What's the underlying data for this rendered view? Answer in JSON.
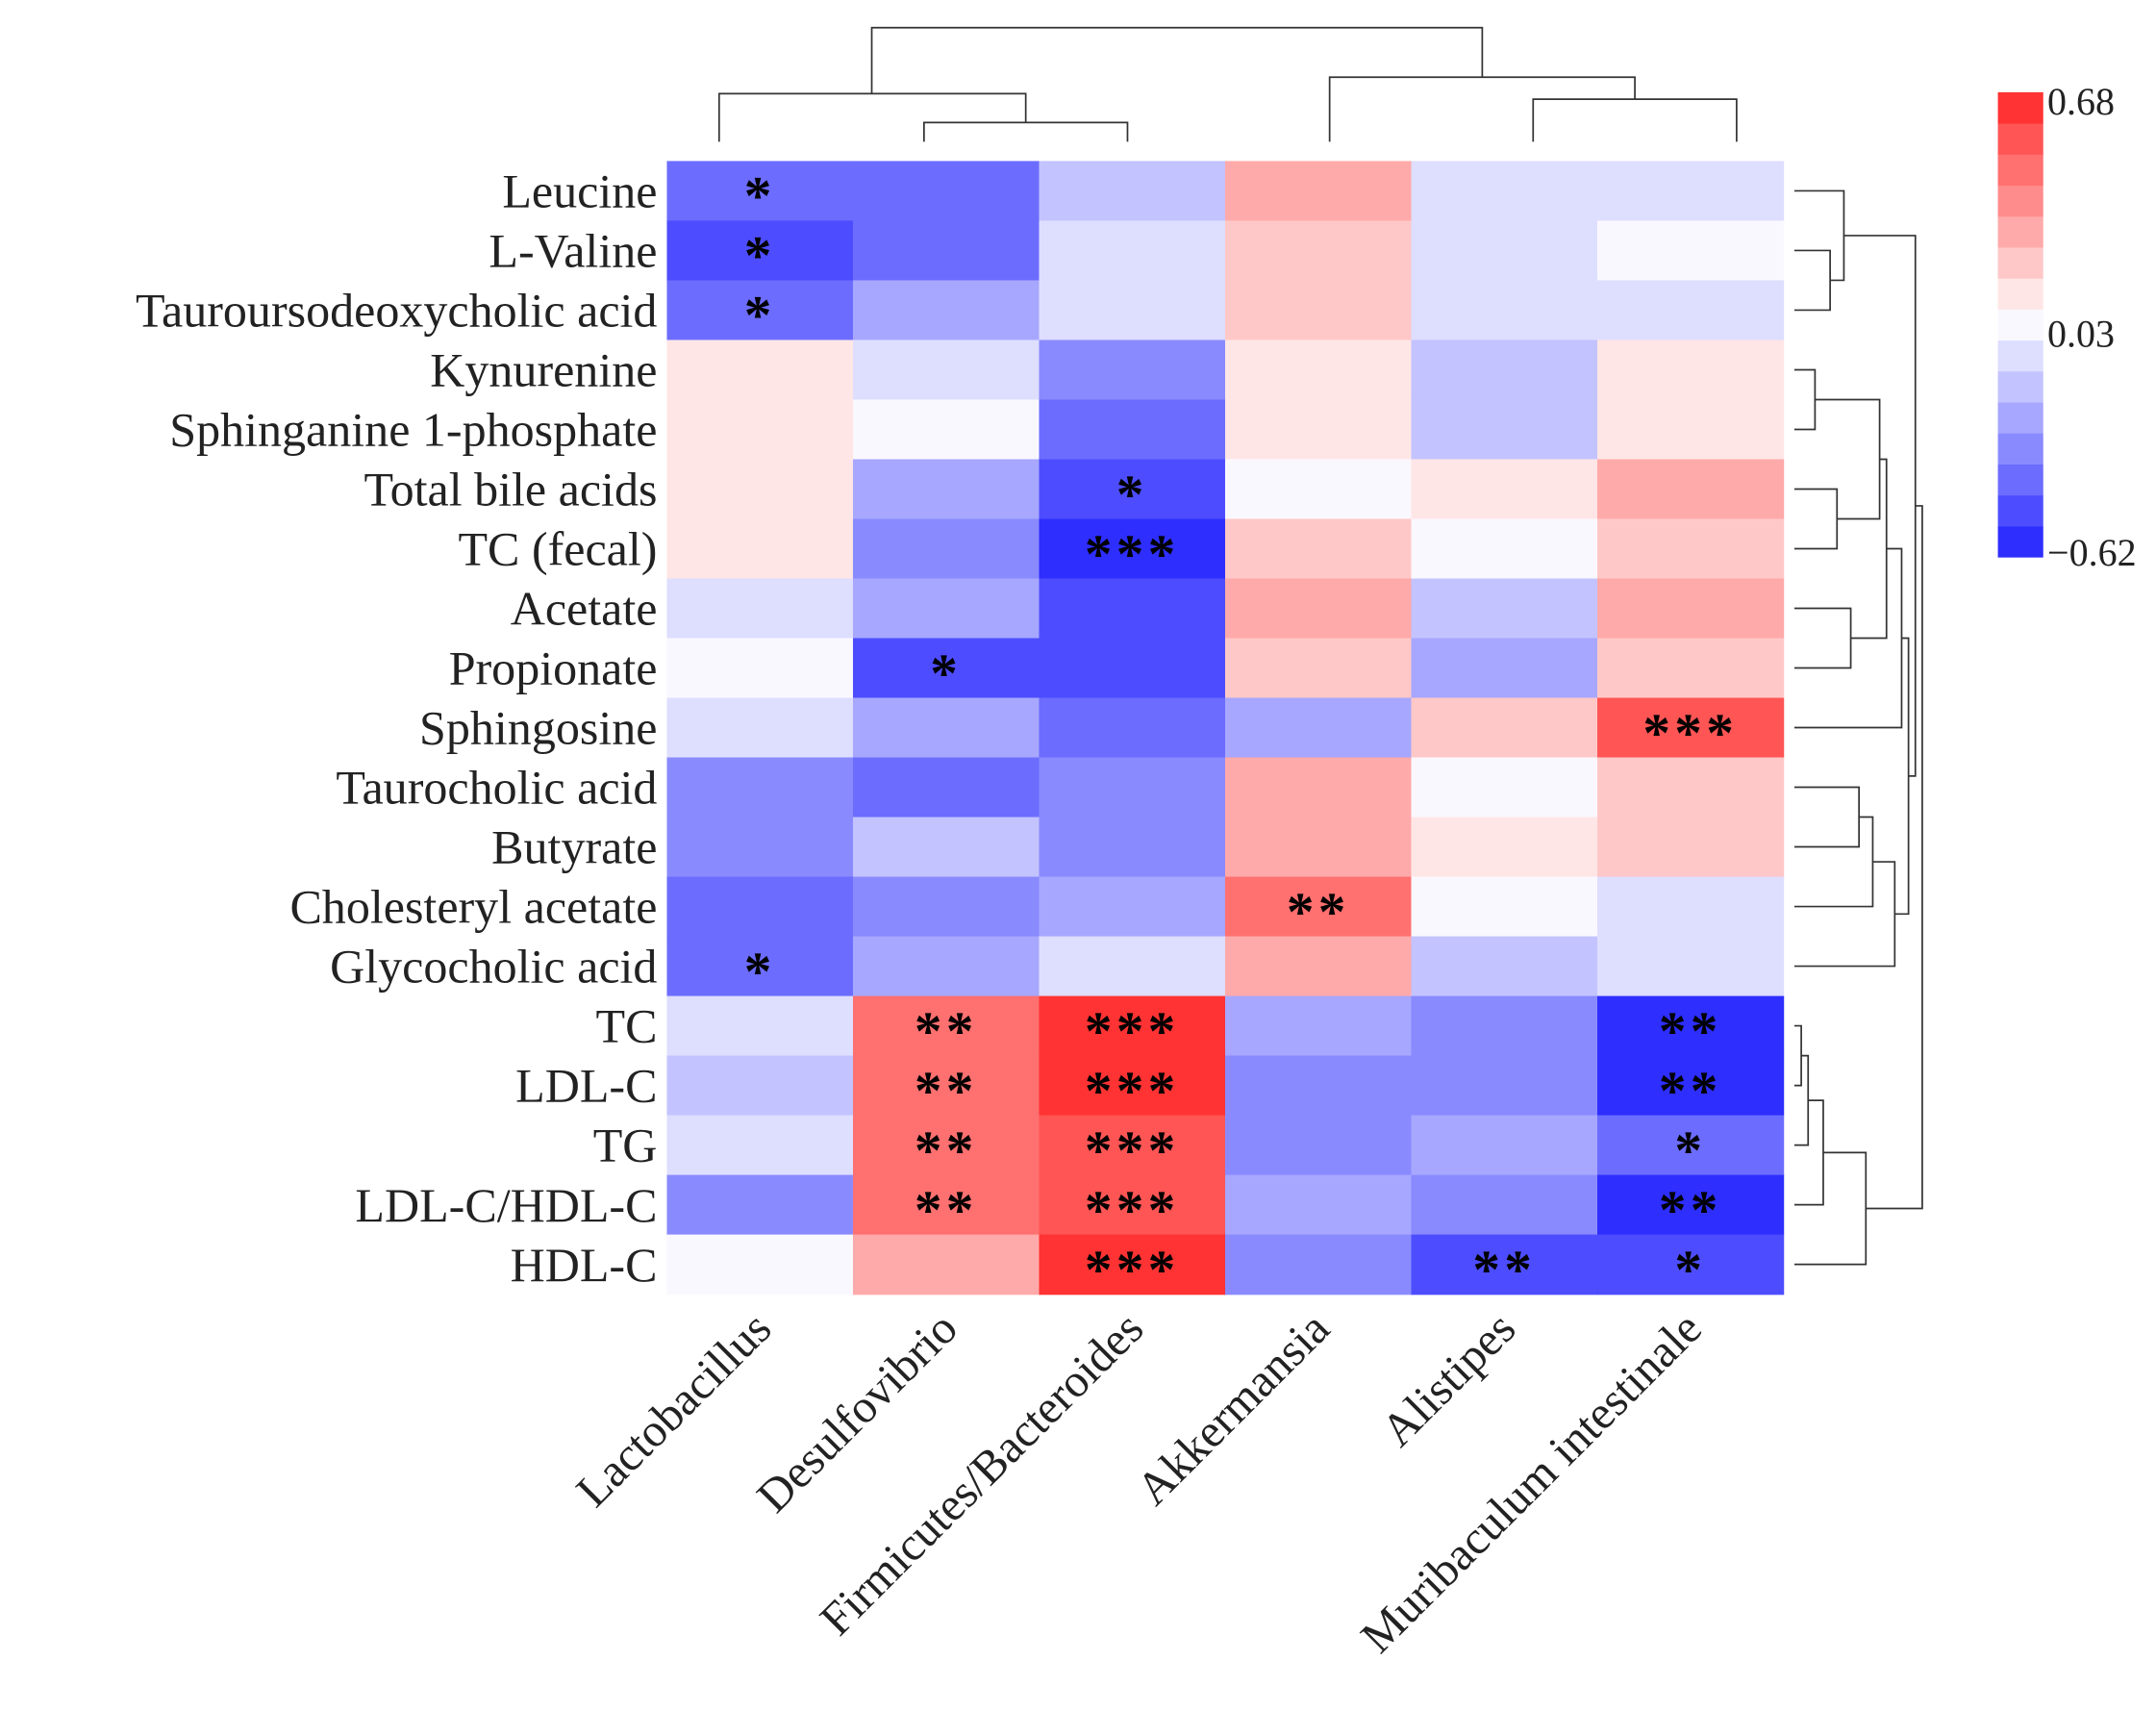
{
  "chart_data": {
    "type": "heatmap",
    "title": "",
    "columns": [
      "Lactobacillus",
      "Desulfovibrio",
      "Firmicutes/Bacteroides",
      "Akkermansia",
      "Alistipes",
      "Muribaculum intestinale"
    ],
    "rows": [
      "Leucine",
      "L-Valine",
      "Tauroursodeoxycholic acid",
      "Kynurenine",
      "Sphinganine 1-phosphate",
      "Total bile acids",
      "TC (fecal)",
      "Acetate",
      "Propionate",
      "Sphingosine",
      "Taurocholic acid",
      "Butyrate",
      "Cholesteryl acetate",
      "Glycocholic acid",
      "TC",
      "LDL-C",
      "TG",
      "LDL-C/HDL-C",
      "HDL-C"
    ],
    "values": [
      [
        -0.4,
        -0.4,
        -0.14,
        0.29,
        -0.06,
        -0.06
      ],
      [
        -0.49,
        -0.4,
        -0.06,
        0.2,
        -0.06,
        0.03
      ],
      [
        -0.4,
        -0.23,
        -0.06,
        0.2,
        -0.06,
        -0.06
      ],
      [
        0.12,
        -0.06,
        -0.32,
        0.12,
        -0.14,
        0.12
      ],
      [
        0.12,
        0.03,
        -0.4,
        0.12,
        -0.14,
        0.12
      ],
      [
        0.12,
        -0.23,
        -0.49,
        0.03,
        0.12,
        0.29
      ],
      [
        0.12,
        -0.32,
        -0.58,
        0.2,
        0.03,
        0.2
      ],
      [
        -0.06,
        -0.23,
        -0.49,
        0.29,
        -0.14,
        0.29
      ],
      [
        0.03,
        -0.49,
        -0.49,
        0.2,
        -0.23,
        0.2
      ],
      [
        -0.06,
        -0.23,
        -0.4,
        -0.23,
        0.2,
        0.55
      ],
      [
        -0.32,
        -0.4,
        -0.32,
        0.29,
        0.03,
        0.2
      ],
      [
        -0.32,
        -0.14,
        -0.32,
        0.29,
        0.12,
        0.2
      ],
      [
        -0.4,
        -0.32,
        -0.23,
        0.46,
        0.03,
        -0.06
      ],
      [
        -0.4,
        -0.23,
        -0.06,
        0.29,
        -0.14,
        -0.06
      ],
      [
        -0.06,
        0.46,
        0.64,
        -0.23,
        -0.32,
        -0.58
      ],
      [
        -0.14,
        0.46,
        0.64,
        -0.32,
        -0.32,
        -0.58
      ],
      [
        -0.06,
        0.46,
        0.55,
        -0.32,
        -0.23,
        -0.4
      ],
      [
        -0.32,
        0.46,
        0.55,
        -0.23,
        -0.32,
        -0.58
      ],
      [
        0.03,
        0.29,
        0.64,
        -0.32,
        -0.49,
        -0.49
      ]
    ],
    "significance": [
      [
        "*",
        "",
        "",
        "",
        "",
        ""
      ],
      [
        "*",
        "",
        "",
        "",
        "",
        ""
      ],
      [
        "*",
        "",
        "",
        "",
        "",
        ""
      ],
      [
        "",
        "",
        "",
        "",
        "",
        ""
      ],
      [
        "",
        "",
        "",
        "",
        "",
        ""
      ],
      [
        "",
        "",
        "*",
        "",
        "",
        ""
      ],
      [
        "",
        "",
        "***",
        "",
        "",
        ""
      ],
      [
        "",
        "",
        "",
        "",
        "",
        ""
      ],
      [
        "",
        "*",
        "",
        "",
        "",
        ""
      ],
      [
        "",
        "",
        "",
        "",
        "",
        "***"
      ],
      [
        "",
        "",
        "",
        "",
        "",
        ""
      ],
      [
        "",
        "",
        "",
        "",
        "",
        ""
      ],
      [
        "",
        "",
        "",
        "**",
        "",
        ""
      ],
      [
        "*",
        "",
        "",
        "",
        "",
        ""
      ],
      [
        "",
        "**",
        "***",
        "",
        "",
        "**"
      ],
      [
        "",
        "**",
        "***",
        "",
        "",
        "**"
      ],
      [
        "",
        "**",
        "***",
        "",
        "",
        "*"
      ],
      [
        "",
        "**",
        "***",
        "",
        "",
        "**"
      ],
      [
        "",
        "",
        "***",
        "",
        "**",
        "*"
      ]
    ],
    "colorbar": {
      "min": -0.62,
      "max": 0.68,
      "tick_labels": [
        "0.68",
        "0.03",
        "−0.62"
      ],
      "bins": 15,
      "colors": [
        "#2e2eff",
        "#4d4dff",
        "#6c6cff",
        "#8a8aff",
        "#a7a7ff",
        "#c3c3ff",
        "#dedeff",
        "#faf8ff",
        "#ffe6e6",
        "#ffc8c8",
        "#ffaaaa",
        "#ff8c8c",
        "#ff7070",
        "#ff5555",
        "#ff3333"
      ]
    },
    "legend_placement": "right"
  }
}
